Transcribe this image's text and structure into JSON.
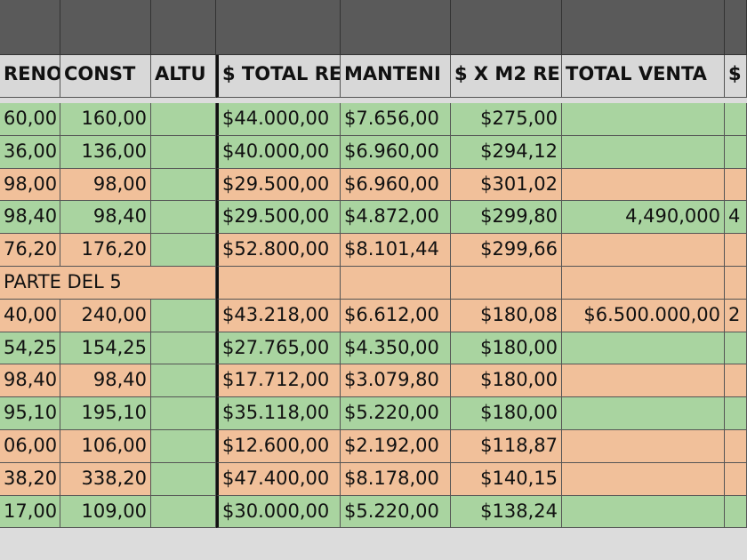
{
  "header": [
    "RENO",
    "CONST",
    "ALTU",
    "$ TOTAL RE",
    "MANTENI",
    "$ X M2 RE",
    "TOTAL VENTA",
    "$"
  ],
  "rows": [
    {
      "fill": "#a9d4a0",
      "cells": [
        "60,00",
        "160,00",
        null,
        "$44.000,00",
        "$7.656,00",
        "$275,00",
        null,
        null
      ]
    },
    {
      "fill": "#a9d4a0",
      "cells": [
        "36,00",
        "136,00",
        null,
        "$40.000,00",
        "$6.960,00",
        "$294,12",
        null,
        null
      ]
    },
    {
      "fill": "#f1c09a",
      "cells": [
        "98,00",
        "98,00",
        null,
        "$29.500,00",
        "$6.960,00",
        "$301,02",
        null,
        null
      ]
    },
    {
      "fill": "#a9d4a0",
      "cells": [
        "98,40",
        "98,40",
        null,
        "$29.500,00",
        "$4.872,00",
        "$299,80",
        "4,490,000",
        "4"
      ]
    },
    {
      "fill": "#f1c09a",
      "cells": [
        "76,20",
        "176,20",
        null,
        "$52.800,00",
        "$8.101,44",
        "$299,66",
        null,
        null
      ]
    },
    {
      "fill": "#f1c09a",
      "cells": [
        "PARTE DEL 5",
        null,
        null,
        null,
        null,
        null,
        null,
        null
      ]
    },
    {
      "fill": "#f1c09a",
      "cells": [
        "40,00",
        "240,00",
        null,
        "$43.218,00",
        "$6.612,00",
        "$180,08",
        "$6.500.000,00",
        "2"
      ]
    },
    {
      "fill": "#a9d4a0",
      "cells": [
        "54,25",
        "154,25",
        null,
        "$27.765,00",
        "$4.350,00",
        "$180,00",
        null,
        null
      ]
    },
    {
      "fill": "#f1c09a",
      "cells": [
        "98,40",
        "98,40",
        null,
        "$17.712,00",
        "$3.079,80",
        "$180,00",
        null,
        null
      ]
    },
    {
      "fill": "#a9d4a0",
      "cells": [
        "95,10",
        "195,10",
        null,
        "$35.118,00",
        "$5.220,00",
        "$180,00",
        null,
        null
      ]
    },
    {
      "fill": "#f1c09a",
      "cells": [
        "06,00",
        "106,00",
        null,
        "$12.600,00",
        "$2.192,00",
        "$118,87",
        null,
        null
      ]
    },
    {
      "fill": "#f1c09a",
      "cells": [
        "38,20",
        "338,20",
        null,
        "$47.400,00",
        "$8.178,00",
        "$140,15",
        null,
        null
      ]
    },
    {
      "fill": "#a9d4a0",
      "cells": [
        "17,00",
        "109,00",
        null,
        "$30.000,00",
        "$5.220,00",
        "$138,24",
        null,
        null
      ]
    }
  ]
}
